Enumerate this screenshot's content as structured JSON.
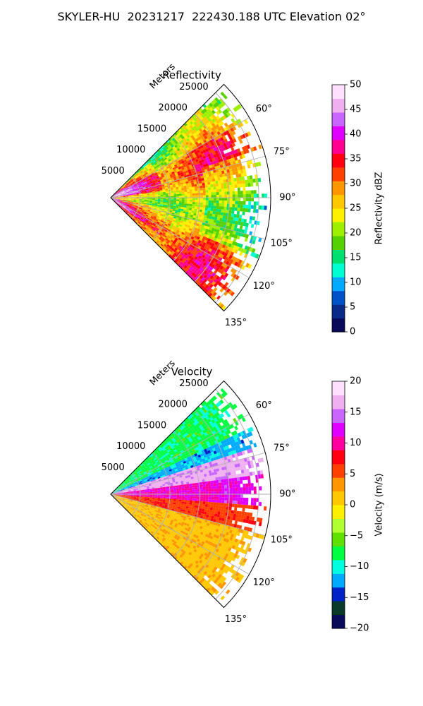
{
  "figure": {
    "suptitle": "SKYLER-HU  20231217  222430.188 UTC Elevation 02°"
  },
  "chart_data": [
    {
      "type": "polar-sector (radar PPI)",
      "title": "Reflectivity",
      "radial_label": "Meters",
      "radial_ticks": [
        5000,
        10000,
        15000,
        20000,
        25000
      ],
      "radial_tick_labels": [
        "5000",
        "10000",
        "15000",
        "20000",
        "25000"
      ],
      "radial_max": 27000,
      "azimuth_range_deg": [
        45,
        135
      ],
      "azimuth_ticks_deg": [
        60,
        75,
        90,
        105,
        120,
        135
      ],
      "azimuth_tick_labels": [
        "60°",
        "75°",
        "90°",
        "105°",
        "120°",
        "135°"
      ],
      "grid": true,
      "colorbar": {
        "label": "Reflectivity dBZ",
        "range": [
          0,
          50
        ],
        "ticks": [
          0,
          5,
          10,
          15,
          20,
          25,
          30,
          35,
          40,
          45,
          50
        ],
        "tick_labels": [
          "0",
          "5",
          "10",
          "15",
          "20",
          "25",
          "30",
          "35",
          "40",
          "45",
          "50"
        ],
        "colors": [
          "#0a0a5a",
          "#0a2a8a",
          "#0050c8",
          "#00aaff",
          "#00ffd0",
          "#00e070",
          "#55d000",
          "#9ef000",
          "#fff000",
          "#ffc800",
          "#ff9600",
          "#ff4000",
          "#ff0010",
          "#ff0090",
          "#e000ff",
          "#c866ff",
          "#f0b0f0",
          "#ffe0ff"
        ]
      },
      "field_summary": [
        {
          "region": "near radar, 50–80°",
          "value_dbz": 40
        },
        {
          "region": "near radar, 105–125°",
          "value_dbz": 38
        },
        {
          "region": "mid/far range",
          "value_dbz": 28
        },
        {
          "region": "far edge, 75–110°",
          "value_dbz": 21
        }
      ]
    },
    {
      "type": "polar-sector (radar PPI)",
      "title": "Velocity",
      "radial_label": "Meters",
      "radial_ticks": [
        5000,
        10000,
        15000,
        20000,
        25000
      ],
      "radial_tick_labels": [
        "5000",
        "10000",
        "15000",
        "20000",
        "25000"
      ],
      "radial_max": 27000,
      "azimuth_range_deg": [
        45,
        135
      ],
      "azimuth_ticks_deg": [
        60,
        75,
        90,
        105,
        120,
        135
      ],
      "azimuth_tick_labels": [
        "60°",
        "75°",
        "90°",
        "105°",
        "120°",
        "135°"
      ],
      "grid": true,
      "colorbar": {
        "label": "Velocity (m/s)",
        "range": [
          -20,
          20
        ],
        "ticks": [
          -20,
          -15,
          -10,
          -5,
          0,
          5,
          10,
          15,
          20
        ],
        "tick_labels": [
          "−20",
          "−15",
          "−10",
          "−5",
          "0",
          "5",
          "10",
          "15",
          "20"
        ],
        "colors": [
          "#0a0a5a",
          "#0a3a2a",
          "#0020c8",
          "#00aaff",
          "#00ffe0",
          "#00ff40",
          "#60e000",
          "#b0ff30",
          "#fff000",
          "#ffc800",
          "#ff9600",
          "#ff4000",
          "#ff0010",
          "#ff00a0",
          "#e000ff",
          "#c866ff",
          "#f0b0f0",
          "#ffe0ff"
        ]
      },
      "field_summary": [
        {
          "region": "45–65°",
          "value_ms": -8
        },
        {
          "region": "65–72°",
          "value_ms": -12
        },
        {
          "region": "72–82°",
          "value_ms": 16
        },
        {
          "region": "82–95°",
          "value_ms": 11
        },
        {
          "region": "95–135°",
          "value_ms": 2
        }
      ]
    }
  ]
}
